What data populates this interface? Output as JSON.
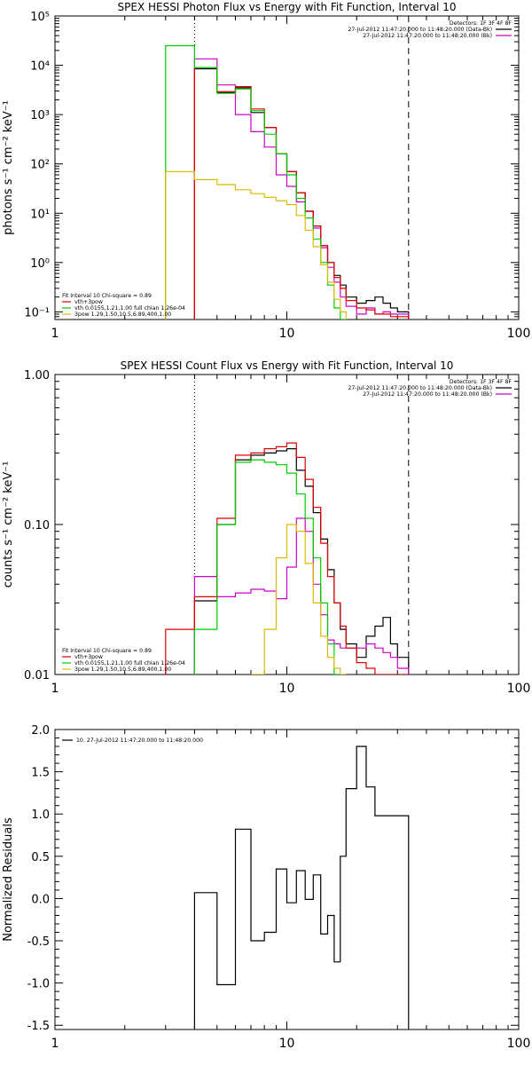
{
  "chart_data": [
    {
      "type": "line",
      "title": "SPEX HESSI Photon Flux vs Energy with Fit Function, Interval 10",
      "ylabel": "photons s⁻¹ cm⁻² keV⁻¹",
      "xlabel": "",
      "xscale": "log",
      "yscale": "log",
      "xlim": [
        1,
        100
      ],
      "ylim": [
        0.07,
        100000
      ],
      "x_ticks": [
        {
          "value": 1,
          "label": "1"
        },
        {
          "value": 10,
          "label": "10"
        },
        {
          "value": 100,
          "label": "100"
        }
      ],
      "y_ticks": [
        {
          "value": 0.1,
          "label": "10⁻¹"
        },
        {
          "value": 1,
          "label": "10⁰"
        },
        {
          "value": 10,
          "label": "10¹"
        },
        {
          "value": 100,
          "label": "10²"
        },
        {
          "value": 1000,
          "label": "10³"
        },
        {
          "value": 10000,
          "label": "10⁴"
        },
        {
          "value": 100000,
          "label": "10⁵"
        }
      ],
      "vlines": [
        {
          "x": 4.0,
          "style": "dotted"
        },
        {
          "x": 33.5,
          "style": "dashed"
        }
      ],
      "legend_topright": [
        {
          "text": "Detectors: 1F 3F 4F 8F",
          "color": "#000000",
          "line": false
        },
        {
          "text": "27-Jul-2012 11:47:20.000 to 11:48:20.000 (Data-Bk)",
          "color": "#000000",
          "line": true
        },
        {
          "text": "27-Jul-2012 11:47:20.000 to 11:48:20.000 (Bk)",
          "color": "#cc00cc",
          "line": true
        }
      ],
      "legend_bottomleft": [
        {
          "text": "Fit Interval 10   Chi-square = 0.89",
          "color": "#000000",
          "line": false
        },
        {
          "text": "vth+3pow",
          "color": "#dd0000",
          "line": true
        },
        {
          "text": "vth 0.0155,1.21,1.00  full chian 1.26e-04",
          "color": "#00cc00",
          "line": true
        },
        {
          "text": "3pow 1.29,1.50,10.5,6.89,400,1.00",
          "color": "#ddbb00",
          "line": true
        }
      ],
      "bin_edges": [
        3,
        4,
        5,
        6,
        7,
        8,
        9,
        10,
        11,
        12,
        13,
        14,
        15,
        16,
        17,
        18,
        20,
        22,
        24,
        26,
        28,
        30,
        33.5
      ],
      "series": [
        {
          "name": "27-Jul-2012 11:47:20.000 to 11:48:20.000 (Data-Bk)",
          "color": "#000000",
          "values": [
            null,
            8500,
            2800,
            3500,
            1100,
            550,
            160,
            70,
            26,
            11,
            5.5,
            2.2,
            1.0,
            0.55,
            0.35,
            0.2,
            0.15,
            0.17,
            0.2,
            0.15,
            0.12,
            0.1
          ]
        },
        {
          "name": "27-Jul-2012 11:47:20.000 to 11:48:20.000 (Bk)",
          "color": "#cc00cc",
          "values": [
            null,
            13500,
            4000,
            1000,
            450,
            220,
            60,
            35,
            17,
            11,
            5.0,
            2.0,
            0.8,
            0.4,
            0.2,
            0.13,
            0.09,
            0.12,
            0.09,
            0.1,
            0.09,
            0.09
          ]
        },
        {
          "name": "vth+3pow",
          "color": "#dd0000",
          "values": [
            null,
            9000,
            2900,
            3700,
            1300,
            550,
            160,
            70,
            26,
            11,
            5.5,
            2.2,
            1.0,
            0.5,
            0.3,
            0.17,
            0.12,
            0.11,
            0.09,
            0.09,
            0.08,
            0.08
          ]
        },
        {
          "name": "vth",
          "color": "#00cc00",
          "values": [
            25000,
            9000,
            2700,
            3300,
            1200,
            400,
            160,
            60,
            20,
            8,
            3,
            1.0,
            0.35,
            0.12,
            0.05,
            null,
            null,
            null,
            null,
            null,
            null,
            null
          ]
        },
        {
          "name": "3pow",
          "color": "#ddbb00",
          "values": [
            70,
            48,
            38,
            30,
            25,
            21,
            18,
            15,
            9,
            4.5,
            2.1,
            0.9,
            0.4,
            0.18,
            0.1,
            null,
            null,
            null,
            null,
            null,
            null,
            null
          ]
        }
      ]
    },
    {
      "type": "line",
      "title": "SPEX HESSI Count Flux vs Energy with Fit Function, Interval 10",
      "ylabel": "counts s⁻¹ cm⁻² keV⁻¹",
      "xlabel": "",
      "xscale": "log",
      "yscale": "log",
      "xlim": [
        1,
        100
      ],
      "ylim": [
        0.01,
        1.0
      ],
      "x_ticks": [
        {
          "value": 1,
          "label": "1"
        },
        {
          "value": 10,
          "label": "10"
        },
        {
          "value": 100,
          "label": "100"
        }
      ],
      "y_ticks": [
        {
          "value": 0.01,
          "label": "0.01"
        },
        {
          "value": 0.1,
          "label": "0.10"
        },
        {
          "value": 1.0,
          "label": "1.00"
        }
      ],
      "vlines": [
        {
          "x": 4.0,
          "style": "dotted"
        },
        {
          "x": 33.5,
          "style": "dashed"
        }
      ],
      "legend_topright": [
        {
          "text": "Detectors: 1F 3F 4F 8F",
          "color": "#000000",
          "line": false
        },
        {
          "text": "27-Jul-2012 11:47:20.000 to 11:48:20.000 (Data-Bk)",
          "color": "#000000",
          "line": true
        },
        {
          "text": "27-Jul-2012 11:47:20.000 to 11:48:20.000 (Bk)",
          "color": "#cc00cc",
          "line": true
        }
      ],
      "legend_bottomleft": [
        {
          "text": "Fit Interval 10   Chi-square = 0.89",
          "color": "#000000",
          "line": false
        },
        {
          "text": "vth+3pow",
          "color": "#dd0000",
          "line": true
        },
        {
          "text": "vth 0.0155,1.21,1.00  full chian 1.26e-04",
          "color": "#00cc00",
          "line": true
        },
        {
          "text": "3pow 1.29,1.50,10.5,6.89,400,1.00",
          "color": "#ddbb00",
          "line": true
        }
      ],
      "bin_edges": [
        3,
        4,
        5,
        6,
        7,
        8,
        9,
        10,
        11,
        12,
        13,
        14,
        15,
        16,
        17,
        18,
        20,
        22,
        24,
        26,
        28,
        30,
        33.5
      ],
      "series": [
        {
          "name": "27-Jul-2012 11:47:20.000 to 11:48:20.000 (Data-Bk)",
          "color": "#000000",
          "values": [
            null,
            0.031,
            0.1,
            0.27,
            0.29,
            0.3,
            0.31,
            0.32,
            0.23,
            0.18,
            0.12,
            0.08,
            0.05,
            0.03,
            0.02,
            0.016,
            0.013,
            0.018,
            0.021,
            0.024,
            0.016,
            0.013
          ]
        },
        {
          "name": "27-Jul-2012 11:47:20.000 to 11:48:20.000 (Bk)",
          "color": "#cc00cc",
          "values": [
            null,
            0.045,
            0.033,
            0.035,
            0.037,
            0.036,
            0.032,
            0.052,
            0.11,
            0.09,
            0.04,
            0.025,
            0.017,
            0.016,
            0.015,
            0.015,
            0.015,
            0.016,
            0.015,
            0.014,
            0.013,
            0.011
          ]
        },
        {
          "name": "vth+3pow",
          "color": "#dd0000",
          "values": [
            0.02,
            0.033,
            0.11,
            0.29,
            0.3,
            0.32,
            0.33,
            0.35,
            0.28,
            0.2,
            0.13,
            0.075,
            0.045,
            0.03,
            0.021,
            0.015,
            0.012,
            0.011,
            0.01,
            0.01,
            0.01,
            0.01
          ]
        },
        {
          "name": "vth",
          "color": "#00cc00",
          "values": [
            null,
            0.02,
            0.1,
            0.26,
            0.27,
            0.26,
            0.25,
            0.22,
            0.16,
            0.11,
            0.06,
            0.03,
            0.016,
            0.01,
            null,
            null,
            null,
            null,
            null,
            null,
            null,
            null
          ]
        },
        {
          "name": "3pow",
          "color": "#ddbb00",
          "values": [
            null,
            null,
            null,
            null,
            0.01,
            0.02,
            0.06,
            0.1,
            0.09,
            0.055,
            0.03,
            0.018,
            0.013,
            0.011,
            0.01,
            null,
            null,
            null,
            null,
            null,
            null,
            null
          ]
        }
      ]
    },
    {
      "type": "line",
      "title": "",
      "ylabel": "Normalized Residuals",
      "xlabel": "",
      "xscale": "log",
      "yscale": "linear",
      "xlim": [
        1,
        100
      ],
      "ylim": [
        -1.55,
        2.0
      ],
      "x_ticks": [
        {
          "value": 1,
          "label": "1"
        },
        {
          "value": 10,
          "label": "10"
        },
        {
          "value": 100,
          "label": "100"
        }
      ],
      "y_ticks": [
        {
          "value": -1.5,
          "label": "-1.5"
        },
        {
          "value": -1.0,
          "label": "-1.0"
        },
        {
          "value": -0.5,
          "label": "-0.5"
        },
        {
          "value": 0.0,
          "label": "0.0"
        },
        {
          "value": 0.5,
          "label": "0.5"
        },
        {
          "value": 1.0,
          "label": "1.0"
        },
        {
          "value": 1.5,
          "label": "1.5"
        },
        {
          "value": 2.0,
          "label": "2.0"
        }
      ],
      "vlines": [],
      "legend_topleft": [
        {
          "text": "10. 27-Jul-2012 11:47:20.000 to 11:48:20.000",
          "color": "#000000",
          "line": true
        }
      ],
      "bin_edges": [
        4,
        5,
        6,
        7,
        8,
        9,
        10,
        11,
        12,
        13,
        14,
        15,
        16,
        17,
        18,
        20,
        22,
        24,
        26,
        28,
        30,
        33.5
      ],
      "series": [
        {
          "name": "10. 27-Jul-2012 11:47:20.000 to 11:48:20.000",
          "color": "#000000",
          "values": [
            0.07,
            -1.02,
            0.82,
            -0.5,
            -0.4,
            0.35,
            -0.05,
            0.33,
            -0.01,
            0.28,
            -0.42,
            -0.2,
            -0.75,
            0.5,
            1.3,
            1.8,
            1.32,
            0.98,
            0.98,
            0.98,
            0.98
          ]
        }
      ]
    }
  ]
}
